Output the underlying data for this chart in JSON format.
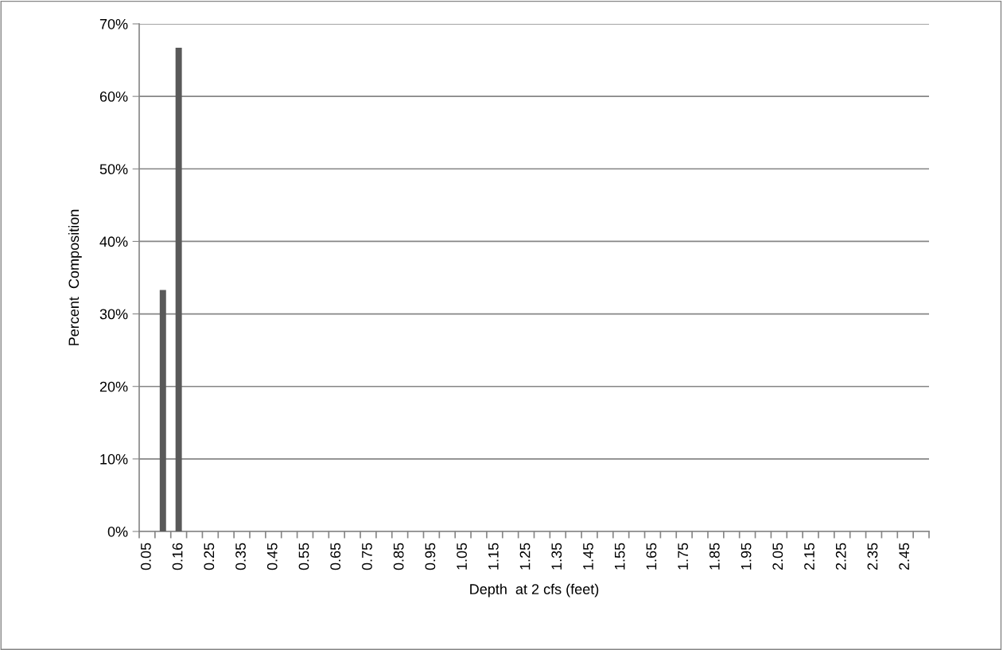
{
  "chart_data": {
    "type": "bar",
    "xlabel": "Depth  at 2 cfs (feet)",
    "ylabel": "Percent  Composition",
    "categories": [
      "0.05",
      null,
      "0.16",
      null,
      "0.25",
      null,
      "0.35",
      null,
      "0.45",
      null,
      "0.55",
      null,
      "0.65",
      null,
      "0.75",
      null,
      "0.85",
      null,
      "0.95",
      null,
      "1.05",
      null,
      "1.15",
      null,
      "1.25",
      null,
      "1.35",
      null,
      "1.45",
      null,
      "1.55",
      null,
      "1.65",
      null,
      "1.75",
      null,
      "1.85",
      null,
      "1.95",
      null,
      "2.05",
      null,
      "2.15",
      null,
      "2.25",
      null,
      "2.35",
      null,
      "2.45",
      null
    ],
    "values": [
      0,
      33.3,
      66.7,
      0,
      0,
      0,
      0,
      0,
      0,
      0,
      0,
      0,
      0,
      0,
      0,
      0,
      0,
      0,
      0,
      0,
      0,
      0,
      0,
      0,
      0,
      0,
      0,
      0,
      0,
      0,
      0,
      0,
      0,
      0,
      0,
      0,
      0,
      0,
      0,
      0,
      0,
      0,
      0,
      0,
      0,
      0,
      0,
      0,
      0,
      0
    ],
    "color": "#595959",
    "ylim": [
      0,
      70
    ],
    "yticks": [
      {
        "value": 0,
        "label": "0%"
      },
      {
        "value": 10,
        "label": "10%"
      },
      {
        "value": 20,
        "label": "20%"
      },
      {
        "value": 30,
        "label": "30%"
      },
      {
        "value": 40,
        "label": "40%"
      },
      {
        "value": 50,
        "label": "50%"
      },
      {
        "value": 60,
        "label": "60%"
      },
      {
        "value": 70,
        "label": "70%"
      }
    ],
    "grid": "y",
    "legend": false
  }
}
